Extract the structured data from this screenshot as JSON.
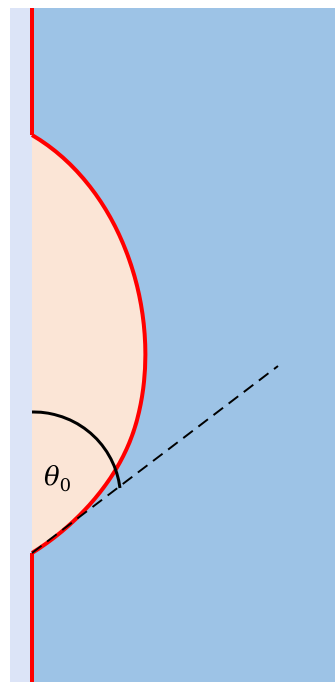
{
  "diagram": {
    "angle_symbol": "θ",
    "angle_subscript": "0",
    "colors": {
      "background": "#ffffff",
      "wall": "#dce4f7",
      "liquid_medium": "#9dc3e6",
      "droplet_fill": "#fbe5d6",
      "interface_line": "#ff0000",
      "angle_arc": "#000000",
      "tangent_line": "#000000"
    }
  }
}
